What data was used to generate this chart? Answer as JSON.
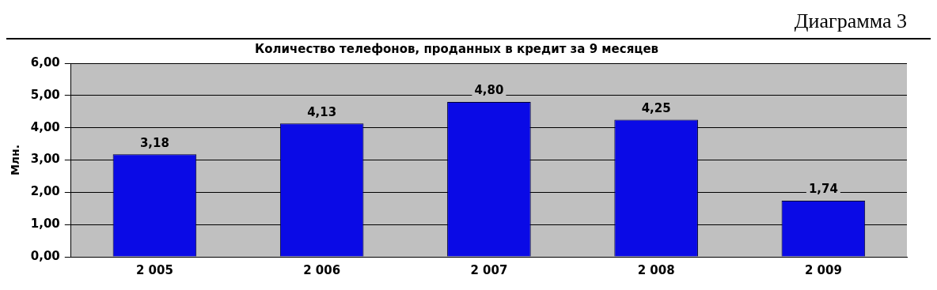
{
  "chart_data": {
    "type": "bar",
    "title": "Количество телефонов, проданных в кредит за 9 месяцев",
    "ylabel": "Млн.",
    "annotations": [
      "Диаграмма 3"
    ],
    "categories": [
      "2 005",
      "2 006",
      "2 007",
      "2 008",
      "2 009"
    ],
    "values": [
      3.18,
      4.13,
      4.8,
      4.25,
      1.74
    ],
    "color": "#0a0ae6",
    "value_labels": [
      "3,18",
      "4,13",
      "4,80",
      "4,25",
      "1,74"
    ],
    "ylim": [
      0,
      6
    ],
    "yticks": [
      {
        "value": 0,
        "label": "0,00"
      },
      {
        "value": 1,
        "label": "1,00"
      },
      {
        "value": 2,
        "label": "2,00"
      },
      {
        "value": 3,
        "label": "3,00"
      },
      {
        "value": 4,
        "label": "4,00"
      },
      {
        "value": 5,
        "label": "5,00"
      },
      {
        "value": 6,
        "label": "6,00"
      }
    ],
    "grid": "y",
    "legend": false
  }
}
